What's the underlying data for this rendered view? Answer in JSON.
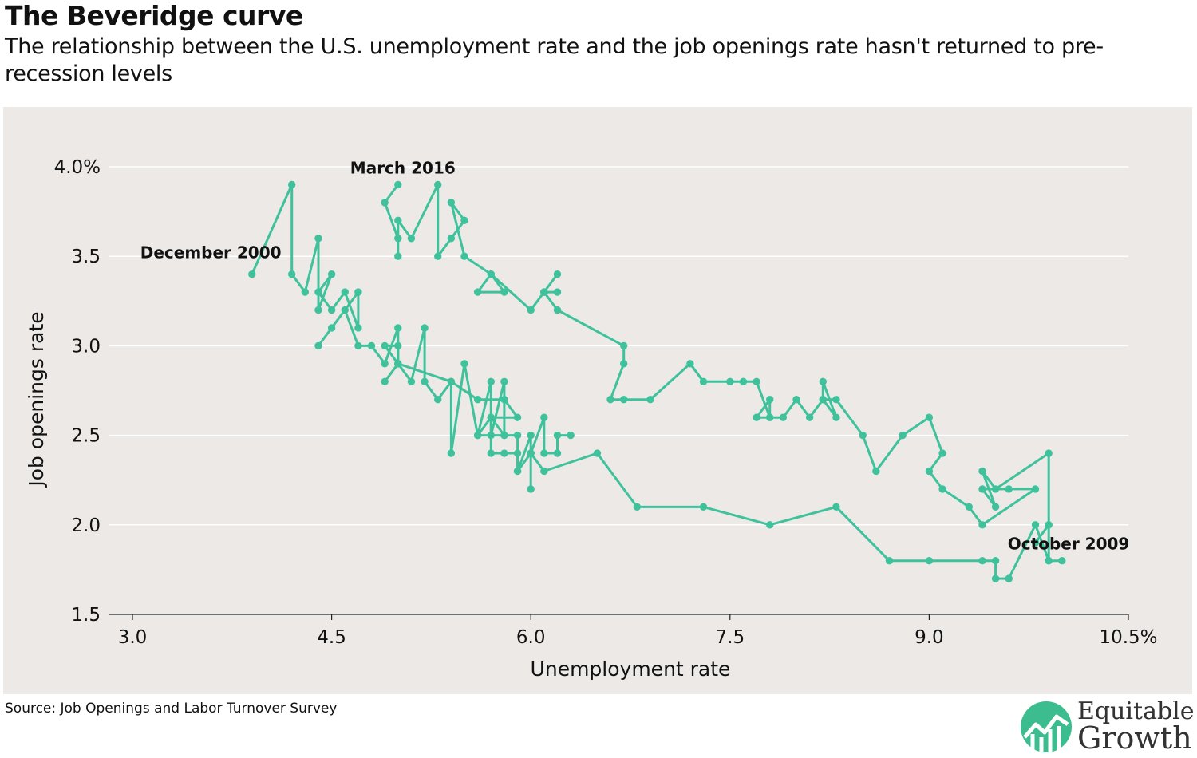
{
  "header": {
    "title": "The Beveridge curve",
    "subtitle": "The relationship between the U.S. unemployment rate and the job openings rate hasn't returned to pre-recession levels"
  },
  "footer": {
    "source": "Source: Job Openings and Labor Turnover Survey",
    "logo_line1": "Equitable",
    "logo_line2": "Growth"
  },
  "colors": {
    "series": "#3fc29b",
    "background": "#ece9e7",
    "grid": "#ffffff",
    "text": "#111111",
    "logo_green": "#3bbd8f"
  },
  "chart_data": {
    "type": "line",
    "title": "The Beveridge curve",
    "xlabel": "Unemployment rate",
    "ylabel": "Job openings rate",
    "xlim": [
      3.0,
      10.5
    ],
    "ylim": [
      1.5,
      4.0
    ],
    "x_ticks": [
      3.0,
      4.5,
      6.0,
      7.5,
      9.0,
      10.5
    ],
    "x_tick_labels": [
      "3.0",
      "4.5",
      "6.0",
      "7.5",
      "9.0",
      "10.5%"
    ],
    "y_ticks": [
      1.5,
      2.0,
      2.5,
      3.0,
      3.5,
      4.0
    ],
    "y_tick_labels": [
      "1.5",
      "2.0",
      "2.5",
      "3.0",
      "3.5",
      "4.0%"
    ],
    "grid": true,
    "marker": "circle",
    "series": [
      {
        "name": "",
        "points": [
          [
            3.9,
            3.4
          ],
          [
            4.2,
            3.9
          ],
          [
            4.2,
            3.4
          ],
          [
            4.3,
            3.3
          ],
          [
            4.4,
            3.6
          ],
          [
            4.4,
            3.2
          ],
          [
            4.5,
            3.4
          ],
          [
            4.4,
            3.3
          ],
          [
            4.5,
            3.2
          ],
          [
            4.6,
            3.3
          ],
          [
            4.7,
            3.1
          ],
          [
            4.7,
            3.3
          ],
          [
            4.5,
            3.1
          ],
          [
            4.4,
            3.0
          ],
          [
            4.6,
            3.2
          ],
          [
            4.7,
            3.0
          ],
          [
            4.8,
            3.0
          ],
          [
            4.9,
            2.9
          ],
          [
            5.0,
            3.1
          ],
          [
            5.0,
            2.9
          ],
          [
            5.1,
            2.8
          ],
          [
            5.2,
            3.1
          ],
          [
            5.2,
            2.8
          ],
          [
            5.3,
            2.7
          ],
          [
            5.4,
            2.8
          ],
          [
            5.4,
            2.4
          ],
          [
            5.5,
            2.9
          ],
          [
            5.6,
            2.5
          ],
          [
            5.7,
            2.6
          ],
          [
            5.7,
            2.4
          ],
          [
            5.8,
            2.4
          ],
          [
            5.9,
            2.4
          ],
          [
            5.9,
            2.3
          ],
          [
            6.0,
            2.5
          ],
          [
            6.0,
            2.2
          ],
          [
            6.0,
            2.4
          ],
          [
            6.1,
            2.3
          ],
          [
            6.5,
            2.4
          ],
          [
            6.8,
            2.1
          ],
          [
            7.3,
            2.1
          ],
          [
            7.8,
            2.0
          ],
          [
            8.3,
            2.1
          ],
          [
            8.7,
            1.8
          ],
          [
            9.0,
            1.8
          ],
          [
            9.4,
            1.8
          ],
          [
            9.5,
            1.8
          ],
          [
            9.5,
            1.7
          ],
          [
            9.6,
            1.7
          ],
          [
            9.8,
            2.0
          ],
          [
            9.9,
            1.8
          ],
          [
            10.0,
            1.8
          ],
          [
            9.9,
            1.8
          ],
          [
            9.9,
            2.0
          ],
          [
            9.8,
            1.9
          ],
          [
            9.9,
            2.0
          ],
          [
            9.9,
            2.4
          ],
          [
            9.5,
            2.2
          ],
          [
            9.4,
            2.3
          ],
          [
            9.5,
            2.1
          ],
          [
            9.4,
            2.2
          ],
          [
            9.6,
            2.2
          ],
          [
            9.8,
            2.2
          ],
          [
            9.4,
            2.0
          ],
          [
            9.3,
            2.1
          ],
          [
            9.1,
            2.2
          ],
          [
            9.0,
            2.3
          ],
          [
            9.1,
            2.4
          ],
          [
            9.0,
            2.6
          ],
          [
            8.8,
            2.5
          ],
          [
            8.6,
            2.3
          ],
          [
            8.5,
            2.5
          ],
          [
            8.3,
            2.7
          ],
          [
            8.2,
            2.7
          ],
          [
            8.2,
            2.8
          ],
          [
            8.3,
            2.6
          ],
          [
            8.2,
            2.7
          ],
          [
            8.1,
            2.6
          ],
          [
            8.0,
            2.7
          ],
          [
            7.9,
            2.6
          ],
          [
            7.8,
            2.6
          ],
          [
            7.8,
            2.7
          ],
          [
            7.7,
            2.6
          ],
          [
            7.8,
            2.6
          ],
          [
            7.7,
            2.8
          ],
          [
            7.6,
            2.8
          ],
          [
            7.5,
            2.8
          ],
          [
            7.3,
            2.8
          ],
          [
            7.2,
            2.9
          ],
          [
            6.9,
            2.7
          ],
          [
            6.7,
            2.7
          ],
          [
            6.6,
            2.7
          ],
          [
            6.7,
            2.9
          ],
          [
            6.7,
            3.0
          ],
          [
            6.2,
            3.2
          ],
          [
            6.1,
            3.3
          ],
          [
            6.2,
            3.3
          ],
          [
            6.1,
            3.3
          ],
          [
            6.2,
            3.4
          ],
          [
            6.1,
            3.3
          ],
          [
            6.0,
            3.2
          ],
          [
            5.7,
            3.4
          ],
          [
            5.8,
            3.3
          ],
          [
            5.6,
            3.3
          ],
          [
            5.7,
            3.4
          ],
          [
            5.5,
            3.5
          ],
          [
            5.4,
            3.8
          ],
          [
            5.5,
            3.7
          ],
          [
            5.4,
            3.6
          ],
          [
            5.3,
            3.5
          ],
          [
            5.3,
            3.9
          ],
          [
            5.1,
            3.6
          ],
          [
            5.0,
            3.7
          ],
          [
            5.0,
            3.5
          ],
          [
            5.0,
            3.6
          ],
          [
            4.9,
            3.8
          ],
          [
            5.0,
            3.9
          ]
        ]
      },
      {
        "name": "",
        "points": [
          [
            4.9,
            2.8
          ],
          [
            5.0,
            2.9
          ],
          [
            5.0,
            3.0
          ],
          [
            4.9,
            3.0
          ],
          [
            5.0,
            2.9
          ],
          [
            5.4,
            2.8
          ],
          [
            5.6,
            2.7
          ],
          [
            5.8,
            2.7
          ],
          [
            5.9,
            2.6
          ],
          [
            5.7,
            2.6
          ],
          [
            5.8,
            2.5
          ],
          [
            5.6,
            2.5
          ],
          [
            5.7,
            2.8
          ],
          [
            5.7,
            2.5
          ],
          [
            5.8,
            2.8
          ],
          [
            5.8,
            2.5
          ],
          [
            5.9,
            2.5
          ],
          [
            5.9,
            2.3
          ],
          [
            6.0,
            2.4
          ],
          [
            6.1,
            2.6
          ],
          [
            6.1,
            2.4
          ],
          [
            6.2,
            2.4
          ],
          [
            6.2,
            2.5
          ],
          [
            6.3,
            2.5
          ]
        ]
      }
    ],
    "annotations": [
      {
        "text": "December 2000",
        "x": 3.9,
        "y": 3.4
      },
      {
        "text": "March 2016",
        "x": 5.0,
        "y": 3.9
      },
      {
        "text": "October 2009",
        "x": 10.0,
        "y": 1.8
      }
    ]
  }
}
